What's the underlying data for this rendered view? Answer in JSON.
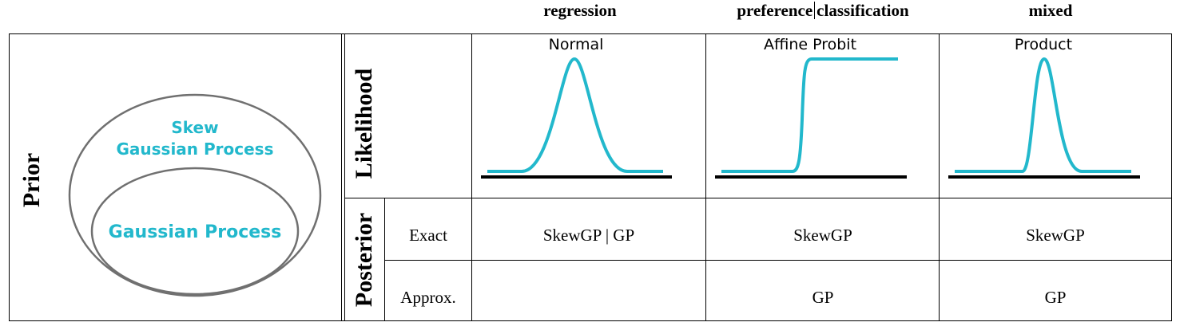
{
  "columns": {
    "regression": "regression",
    "preference": "preference",
    "classification": "classification",
    "mixed": "mixed"
  },
  "rows": {
    "prior": "Prior",
    "likelihood": "Likelihood",
    "posterior": "Posterior",
    "exact": "Exact",
    "approx": "Approx."
  },
  "prior_diagram": {
    "outer_line1": "Skew",
    "outer_line2": "Gaussian Process",
    "inner": "Gaussian Process",
    "accent_color": "#22b8cc",
    "ellipse_color": "#707070"
  },
  "likelihoods": {
    "regression": "Normal",
    "classification": "Affine Probit",
    "mixed": "Product"
  },
  "posterior": {
    "exact": {
      "regression_a": "SkewGP",
      "separator": "|",
      "regression_b": "GP",
      "classification": "SkewGP",
      "mixed": "SkewGP"
    },
    "approx": {
      "regression": "",
      "classification": "GP",
      "mixed": "GP"
    }
  }
}
